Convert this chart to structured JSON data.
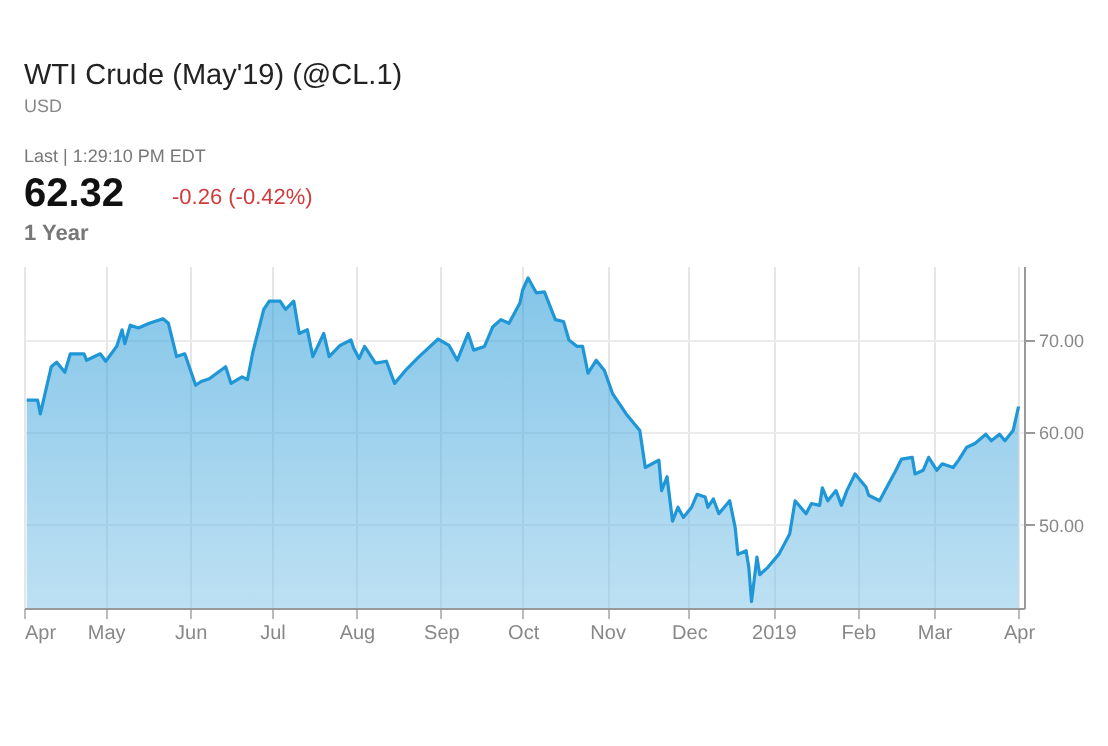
{
  "chart_data": {
    "type": "area",
    "title": "WTI Crude (May'19) (@CL.1)",
    "subtitle": "USD",
    "annotations": [
      "Last | 1:29:10 PM EDT",
      "62.32",
      "-0.26 (-0.42%)",
      "1 Year"
    ],
    "x": [
      "2018-04-02",
      "2018-04-06",
      "2018-04-07",
      "2018-04-11",
      "2018-04-13",
      "2018-04-16",
      "2018-04-18",
      "2018-04-23",
      "2018-04-24",
      "2018-04-29",
      "2018-05-01",
      "2018-05-05",
      "2018-05-07",
      "2018-05-08",
      "2018-05-10",
      "2018-05-13",
      "2018-05-17",
      "2018-05-22",
      "2018-05-24",
      "2018-05-27",
      "2018-05-30",
      "2018-06-03",
      "2018-06-05",
      "2018-06-08",
      "2018-06-14",
      "2018-06-16",
      "2018-06-20",
      "2018-06-22",
      "2018-06-24",
      "2018-06-28",
      "2018-06-30",
      "2018-07-04",
      "2018-07-06",
      "2018-07-09",
      "2018-07-11",
      "2018-07-14",
      "2018-07-16",
      "2018-07-20",
      "2018-07-22",
      "2018-07-26",
      "2018-07-30",
      "2018-07-31",
      "2018-08-02",
      "2018-08-04",
      "2018-08-08",
      "2018-08-12",
      "2018-08-15",
      "2018-08-19",
      "2018-08-24",
      "2018-08-31",
      "2018-09-04",
      "2018-09-07",
      "2018-09-11",
      "2018-09-13",
      "2018-09-17",
      "2018-09-20",
      "2018-09-23",
      "2018-09-26",
      "2018-09-30",
      "2018-10-01",
      "2018-10-03",
      "2018-10-06",
      "2018-10-09",
      "2018-10-13",
      "2018-10-16",
      "2018-10-18",
      "2018-10-21",
      "2018-10-23",
      "2018-10-25",
      "2018-10-28",
      "2018-10-31",
      "2018-11-03",
      "2018-11-08",
      "2018-11-13",
      "2018-11-15",
      "2018-11-20",
      "2018-11-21",
      "2018-11-23",
      "2018-11-25",
      "2018-11-27",
      "2018-11-29",
      "2018-12-02",
      "2018-12-04",
      "2018-12-07",
      "2018-12-08",
      "2018-12-10",
      "2018-12-12",
      "2018-12-14",
      "2018-12-16",
      "2018-12-18",
      "2018-12-19",
      "2018-12-22",
      "2018-12-23",
      "2018-12-24",
      "2018-12-26",
      "2018-12-27",
      "2018-12-30",
      "2019-01-03",
      "2019-01-07",
      "2019-01-09",
      "2019-01-13",
      "2019-01-15",
      "2019-01-18",
      "2019-01-19",
      "2019-01-21",
      "2019-01-24",
      "2019-01-26",
      "2019-01-28",
      "2019-01-31",
      "2019-02-04",
      "2019-02-05",
      "2019-02-09",
      "2019-02-11",
      "2019-02-15",
      "2019-02-17",
      "2019-02-21",
      "2019-02-22",
      "2019-02-25",
      "2019-02-27",
      "2019-03-02",
      "2019-03-04",
      "2019-03-08",
      "2019-03-10",
      "2019-03-13",
      "2019-03-16",
      "2019-03-20",
      "2019-03-22",
      "2019-03-25",
      "2019-03-27",
      "2019-03-30",
      "2019-04-01"
    ],
    "series": [
      {
        "color": "#1f96d6",
        "values": [
          63.5,
          63.5,
          62.0,
          67.1,
          67.6,
          66.5,
          68.5,
          68.5,
          67.8,
          68.5,
          67.7,
          69.3,
          71.1,
          69.6,
          71.6,
          71.3,
          71.8,
          72.3,
          71.8,
          68.2,
          68.5,
          65.1,
          65.5,
          65.8,
          67.1,
          65.3,
          66.0,
          65.7,
          68.7,
          73.3,
          74.2,
          74.2,
          73.3,
          74.2,
          70.7,
          71.1,
          68.2,
          70.7,
          68.2,
          69.4,
          70.0,
          69.1,
          68.0,
          69.3,
          67.5,
          67.7,
          65.3,
          66.7,
          68.2,
          70.1,
          69.4,
          67.8,
          70.7,
          68.9,
          69.3,
          71.4,
          72.2,
          71.8,
          74.0,
          75.4,
          76.7,
          75.1,
          75.2,
          72.2,
          72.0,
          70.0,
          69.3,
          69.3,
          66.4,
          67.8,
          66.7,
          64.2,
          62.0,
          60.2,
          56.2,
          57.0,
          53.7,
          55.2,
          50.4,
          51.9,
          50.8,
          51.9,
          53.3,
          53.0,
          51.9,
          52.8,
          51.2,
          51.9,
          52.6,
          49.7,
          46.8,
          47.2,
          45.4,
          41.7,
          46.5,
          44.6,
          45.4,
          46.8,
          49.0,
          52.6,
          51.2,
          52.3,
          52.1,
          54.0,
          52.6,
          53.7,
          52.1,
          53.7,
          55.5,
          54.1,
          53.2,
          52.6,
          53.7,
          55.9,
          57.1,
          57.3,
          55.5,
          55.9,
          57.3,
          55.9,
          56.6,
          56.2,
          57.0,
          58.4,
          58.8,
          59.8,
          59.1,
          59.8,
          59.1,
          60.2,
          62.8
        ]
      }
    ],
    "xlim": [
      "2018-04-01",
      "2019-04-03"
    ],
    "xticks": [
      {
        "value": "2018-04-01",
        "label": "Apr"
      },
      {
        "value": "2018-05-01",
        "label": "May"
      },
      {
        "value": "2018-06-01",
        "label": "Jun"
      },
      {
        "value": "2018-07-01",
        "label": "Jul"
      },
      {
        "value": "2018-08-01",
        "label": "Aug"
      },
      {
        "value": "2018-09-01",
        "label": "Sep"
      },
      {
        "value": "2018-10-01",
        "label": "Oct"
      },
      {
        "value": "2018-11-01",
        "label": "Nov"
      },
      {
        "value": "2018-12-01",
        "label": "Dec"
      },
      {
        "value": "2019-01-01",
        "label": "2019"
      },
      {
        "value": "2019-02-01",
        "label": "Feb"
      },
      {
        "value": "2019-03-01",
        "label": "Mar"
      },
      {
        "value": "2019-04-01",
        "label": "Apr"
      }
    ],
    "ylim": [
      41,
      78
    ],
    "yticks": [
      {
        "value": 50,
        "label": "50.00"
      },
      {
        "value": 60,
        "label": "60.00"
      },
      {
        "value": 70,
        "label": "70.00"
      }
    ],
    "grid": true
  }
}
